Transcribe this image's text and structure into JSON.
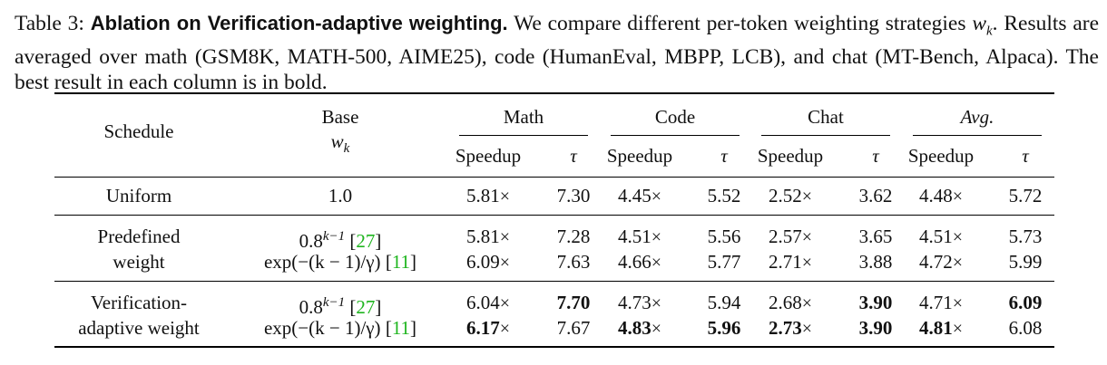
{
  "caption": {
    "label": "Table 3:",
    "title": "Ablation on Verification-adaptive weighting.",
    "text_line1": "We compare different per-token weighting strategies",
    "symbol": "w_k",
    "text_line2": ". Results are averaged over math (GSM8K, MATH-500, AIME25), code (HumanEval, MBPP, LCB), and",
    "text_line3": "chat (MT-Bench, Alpaca). The best result in each column is in bold."
  },
  "table": {
    "headers": {
      "schedule": "Schedule",
      "base": "Base",
      "base_symbol": "w_k",
      "groups": [
        "Math",
        "Code",
        "Chat",
        "Avg."
      ],
      "sub": [
        "Speedup",
        "τ"
      ]
    },
    "rows": [
      {
        "schedule": "Uniform",
        "base": "1.0",
        "cite": "",
        "values": [
          "5.81×",
          "7.30",
          "4.45×",
          "5.52",
          "2.52×",
          "3.62",
          "4.48×",
          "5.72"
        ]
      },
      {
        "schedule": "Predefined",
        "base": "0.8^(k−1)",
        "cite": "[27]",
        "values": [
          "5.81×",
          "7.28",
          "4.51×",
          "5.56",
          "2.57×",
          "3.65",
          "4.51×",
          "5.73"
        ]
      },
      {
        "schedule": "weight",
        "base": "exp(−(k − 1)/γ)",
        "cite": "[11]",
        "values": [
          "6.09×",
          "7.63",
          "4.66×",
          "5.77",
          "2.71×",
          "3.88",
          "4.72×",
          "5.99"
        ]
      },
      {
        "schedule": "Verification-",
        "base": "0.8^(k−1)",
        "cite": "[27]",
        "values": [
          "6.04×",
          "7.70",
          "4.73×",
          "5.94",
          "2.68×",
          "3.90",
          "4.71×",
          "6.09"
        ]
      },
      {
        "schedule": "adaptive weight",
        "base": "exp(−(k − 1)/γ)",
        "cite": "[11]",
        "values": [
          "6.17×",
          "7.67",
          "4.83×",
          "5.96",
          "2.73×",
          "3.90",
          "4.81×",
          "6.08"
        ]
      }
    ],
    "bold": [
      [
        3,
        1
      ],
      [
        3,
        5
      ],
      [
        3,
        7
      ],
      [
        4,
        0
      ],
      [
        4,
        2
      ],
      [
        4,
        3
      ],
      [
        4,
        4
      ],
      [
        4,
        5
      ],
      [
        4,
        6
      ]
    ]
  }
}
